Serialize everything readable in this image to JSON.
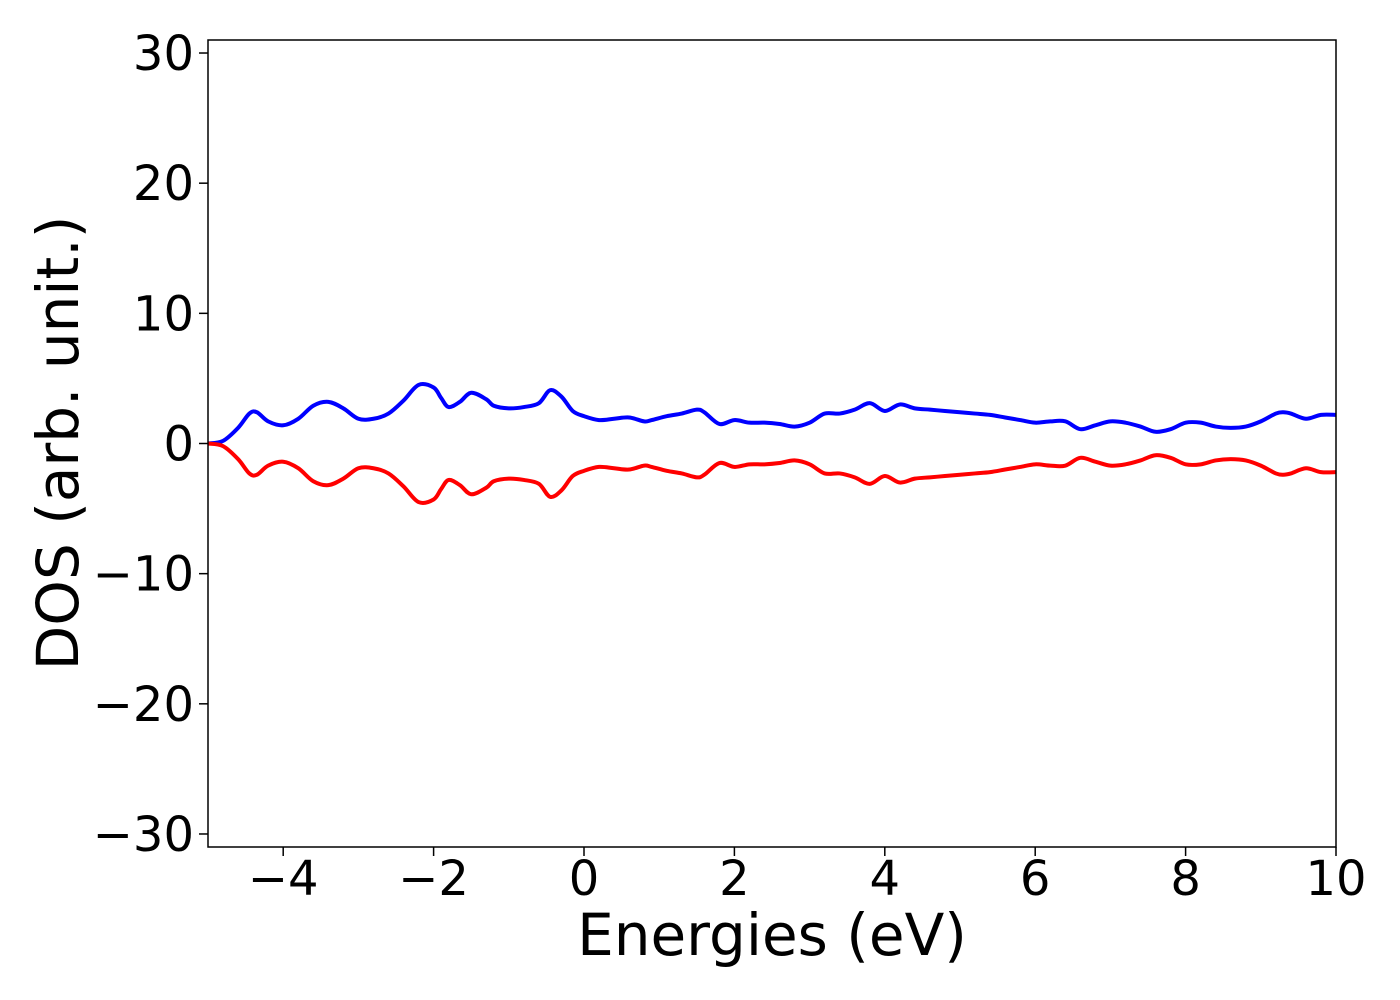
{
  "chart_data": {
    "type": "line",
    "title": "",
    "xlabel": "Energies (eV)",
    "ylabel": "DOS (arb. unit.)",
    "xlim": [
      -5,
      10
    ],
    "ylim": [
      -31,
      31
    ],
    "xticks": [
      -4,
      -2,
      0,
      2,
      4,
      6,
      8,
      10
    ],
    "yticks": [
      -30,
      -20,
      -10,
      0,
      10,
      20,
      30
    ],
    "xtick_labels": [
      "−4",
      "−2",
      "0",
      "2",
      "4",
      "6",
      "8",
      "10"
    ],
    "ytick_labels": [
      "−30",
      "−20",
      "−10",
      "0",
      "10",
      "20",
      "30"
    ],
    "grid": false,
    "legend": "none",
    "x": [
      -5.0,
      -4.8,
      -4.6,
      -4.45,
      -4.35,
      -4.2,
      -4.0,
      -3.8,
      -3.6,
      -3.4,
      -3.2,
      -3.0,
      -2.8,
      -2.6,
      -2.4,
      -2.2,
      -2.0,
      -1.9,
      -1.8,
      -1.65,
      -1.5,
      -1.3,
      -1.2,
      -1.0,
      -0.8,
      -0.6,
      -0.45,
      -0.3,
      -0.15,
      0.0,
      0.2,
      0.4,
      0.6,
      0.8,
      0.9,
      1.1,
      1.3,
      1.5,
      1.6,
      1.8,
      2.0,
      2.2,
      2.4,
      2.6,
      2.8,
      3.0,
      3.2,
      3.4,
      3.6,
      3.8,
      4.0,
      4.2,
      4.4,
      4.6,
      4.8,
      5.0,
      5.2,
      5.4,
      5.6,
      5.8,
      6.0,
      6.2,
      6.4,
      6.6,
      6.8,
      7.0,
      7.2,
      7.4,
      7.6,
      7.8,
      8.0,
      8.2,
      8.4,
      8.6,
      8.8,
      9.0,
      9.2,
      9.3,
      9.4,
      9.6,
      9.8,
      10.0
    ],
    "series": [
      {
        "color": "#0000ff",
        "values": [
          0.0,
          0.2,
          1.2,
          2.3,
          2.4,
          1.7,
          1.4,
          1.9,
          2.9,
          3.2,
          2.7,
          1.9,
          1.9,
          2.3,
          3.3,
          4.5,
          4.3,
          3.5,
          2.8,
          3.2,
          3.9,
          3.4,
          2.9,
          2.7,
          2.8,
          3.1,
          4.1,
          3.6,
          2.5,
          2.1,
          1.8,
          1.9,
          2.0,
          1.7,
          1.8,
          2.1,
          2.3,
          2.6,
          2.4,
          1.5,
          1.8,
          1.6,
          1.6,
          1.5,
          1.3,
          1.6,
          2.3,
          2.3,
          2.6,
          3.1,
          2.5,
          3.0,
          2.7,
          2.6,
          2.5,
          2.4,
          2.3,
          2.2,
          2.0,
          1.8,
          1.6,
          1.7,
          1.7,
          1.1,
          1.4,
          1.7,
          1.6,
          1.3,
          0.9,
          1.1,
          1.6,
          1.6,
          1.3,
          1.2,
          1.3,
          1.7,
          2.3,
          2.4,
          2.3,
          1.9,
          2.2,
          2.2
        ]
      },
      {
        "color": "#ff0000",
        "values": [
          0.0,
          -0.2,
          -1.2,
          -2.3,
          -2.4,
          -1.7,
          -1.4,
          -1.9,
          -2.9,
          -3.2,
          -2.7,
          -1.9,
          -1.9,
          -2.3,
          -3.3,
          -4.5,
          -4.3,
          -3.5,
          -2.8,
          -3.2,
          -3.9,
          -3.4,
          -2.9,
          -2.7,
          -2.8,
          -3.1,
          -4.1,
          -3.6,
          -2.5,
          -2.1,
          -1.8,
          -1.9,
          -2.0,
          -1.7,
          -1.8,
          -2.1,
          -2.3,
          -2.6,
          -2.4,
          -1.5,
          -1.8,
          -1.6,
          -1.6,
          -1.5,
          -1.3,
          -1.6,
          -2.3,
          -2.3,
          -2.6,
          -3.1,
          -2.5,
          -3.0,
          -2.7,
          -2.6,
          -2.5,
          -2.4,
          -2.3,
          -2.2,
          -2.0,
          -1.8,
          -1.6,
          -1.7,
          -1.7,
          -1.1,
          -1.4,
          -1.7,
          -1.6,
          -1.3,
          -0.9,
          -1.1,
          -1.6,
          -1.6,
          -1.3,
          -1.2,
          -1.3,
          -1.7,
          -2.3,
          -2.4,
          -2.3,
          -1.9,
          -2.2,
          -2.2
        ]
      }
    ]
  }
}
